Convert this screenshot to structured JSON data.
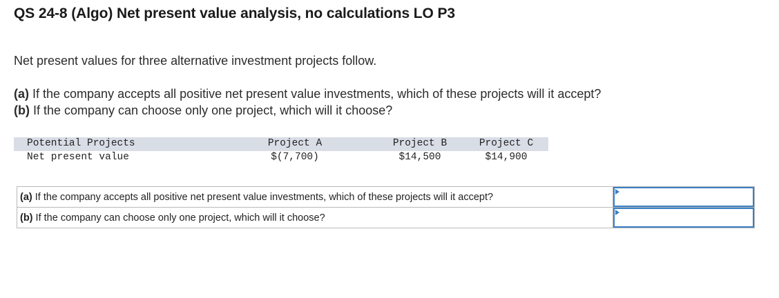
{
  "title": "QS 24-8 (Algo) Net present value analysis, no calculations LO P3",
  "intro": "Net present values for three alternative investment projects follow.",
  "questions": [
    {
      "tag": "(a)",
      "text": " If the company accepts all positive net present value investments, which of these projects will it accept?"
    },
    {
      "tag": "(b)",
      "text": " If the company can choose only one project, which will it choose?"
    }
  ],
  "table": {
    "header": [
      "Potential Projects",
      "Project A",
      "Project B",
      "Project C"
    ],
    "row": [
      "Net present value",
      "$(7,700)",
      "$14,500",
      "$14,900"
    ]
  },
  "answers": [
    {
      "tag": "(a)",
      "text": " If the company accepts all positive net present value investments, which of these projects will it accept?",
      "selected": ""
    },
    {
      "tag": "(b)",
      "text": " If the company can choose only one project, which will it choose?",
      "selected": ""
    }
  ],
  "icons": {
    "dropdown": "caret-right-icon"
  },
  "colors": {
    "header_bg": "#d8dde6",
    "dropdown_border": "#3b7fc4"
  }
}
